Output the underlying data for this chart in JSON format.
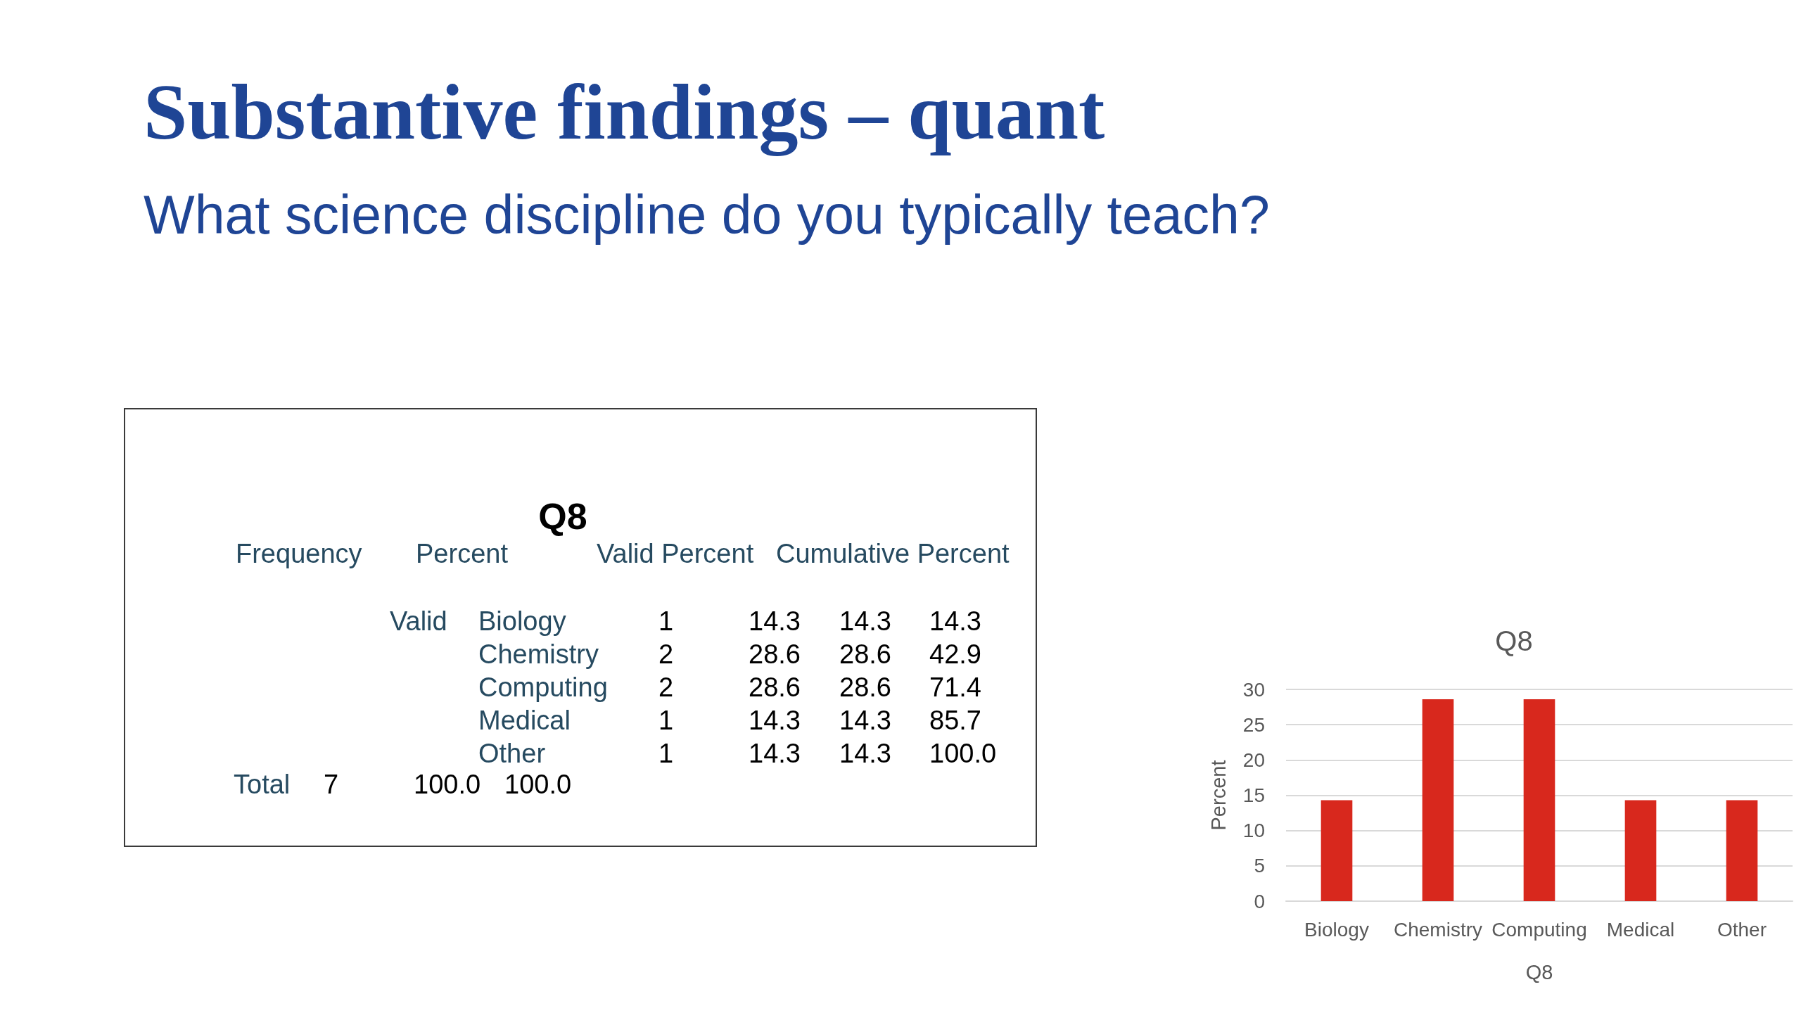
{
  "chart_data": [
    {
      "type": "other",
      "title": "Substantive findings – quant",
      "subtitle": "What science discipline do you typically teach?",
      "annotations": [
        "Q8",
        "Valid",
        "Total"
      ],
      "categories": [
        "Biology",
        "Chemistry",
        "Computing",
        "Medical",
        "Other"
      ],
      "series": [
        {
          "name": "Frequency",
          "values": [
            1,
            2,
            2,
            1,
            1
          ]
        },
        {
          "name": "Percent",
          "values": [
            14.3,
            28.6,
            28.6,
            14.3,
            14.3
          ]
        },
        {
          "name": "Valid Percent",
          "values": [
            14.3,
            28.6,
            28.6,
            14.3,
            14.3
          ]
        },
        {
          "name": "Cumulative Percent",
          "values": [
            14.3,
            42.9,
            71.4,
            85.7,
            100.0
          ],
          "value_labels": [
            "14.3",
            "42.9",
            "71.4",
            "85.7",
            "100.0"
          ]
        }
      ],
      "data_labels": true,
      "totals": [
        "7",
        "100.0",
        "100.0"
      ]
    },
    {
      "type": "bar",
      "title": "Q8",
      "xlabel": "Q8",
      "ylabel": "Percent",
      "categories": [
        "Biology",
        "Chemistry",
        "Computing",
        "Medical",
        "Other"
      ],
      "values": [
        14.3,
        28.6,
        28.6,
        14.3,
        14.3
      ],
      "color": "#d8281d",
      "ylim": [
        0,
        30
      ],
      "yticks": [
        0,
        5,
        10,
        15,
        20,
        25,
        30
      ],
      "grid": "y"
    }
  ]
}
